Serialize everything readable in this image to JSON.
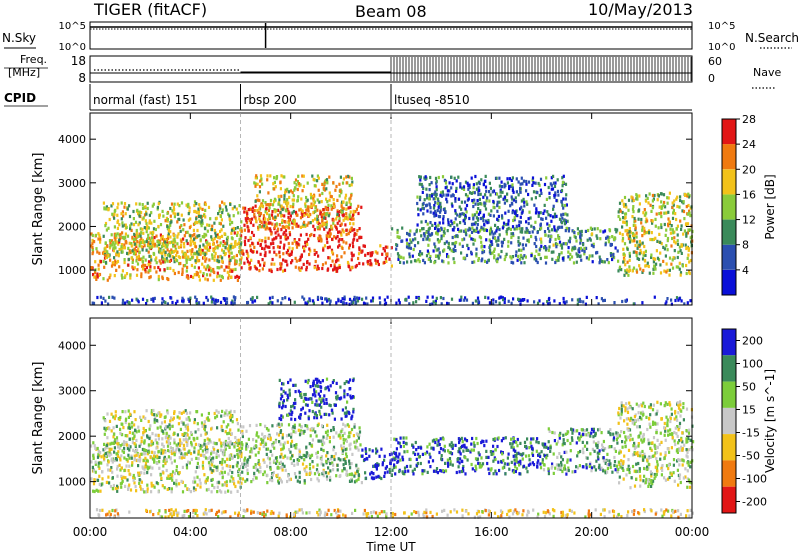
{
  "header": {
    "radar_title": "TIGER (fitACF)",
    "beam": "Beam 08",
    "date": "10/May/2013"
  },
  "status_panel": {
    "nsky_label": "N.Sky",
    "nsearch_label": "N.Search",
    "noise_ticks_left": [
      "10^5",
      "10^0"
    ],
    "noise_ticks_right": [
      "10^5",
      "10^0"
    ],
    "freq_label": "Freq.",
    "freq_unit": "[MHz]",
    "freq_ticks": [
      "18",
      "8"
    ],
    "nave_label": "Nave",
    "nave_ticks": [
      "60",
      "0"
    ],
    "cpid_label": "CPID",
    "cpid_segments": [
      {
        "label": "normal (fast) 151",
        "start_hour": 0,
        "end_hour": 6
      },
      {
        "label": "rbsp 200",
        "start_hour": 6,
        "end_hour": 12
      },
      {
        "label": "ltuseq -8510",
        "start_hour": 12,
        "end_hour": 24
      }
    ]
  },
  "chart_data": [
    {
      "type": "heatmap",
      "parameter": "Power",
      "xlabel": "Time UT",
      "ylabel": "Slant Range [km]",
      "xlim": [
        0,
        24
      ],
      "ylim": [
        200,
        4600
      ],
      "x_ticks": [
        "00:00",
        "04:00",
        "08:00",
        "12:00",
        "16:00",
        "20:00",
        "00:00"
      ],
      "x_tick_hours": [
        0,
        4,
        8,
        12,
        16,
        20,
        24
      ],
      "y_ticks": [
        1000,
        2000,
        3000,
        4000
      ],
      "colorbar": {
        "label": "Power [dB]",
        "ticks": [
          "4",
          "8",
          "12",
          "16",
          "20",
          "24",
          "28"
        ],
        "colors": [
          "#0a10d8",
          "#2b4fb0",
          "#3a8a5a",
          "#8acb3a",
          "#f2c21a",
          "#f07a10",
          "#e21616"
        ]
      },
      "echo_regions": [
        {
          "t0": 0.0,
          "t1": 6.0,
          "r0": 800,
          "r1": 1900,
          "level": 0.7
        },
        {
          "t0": 0.5,
          "t1": 6.0,
          "r0": 1200,
          "r1": 2600,
          "level": 0.55
        },
        {
          "t0": 6.0,
          "t1": 10.8,
          "r0": 1000,
          "r1": 2500,
          "level": 0.9
        },
        {
          "t0": 6.5,
          "t1": 10.5,
          "r0": 2000,
          "r1": 3200,
          "level": 0.6
        },
        {
          "t0": 10.8,
          "t1": 12.0,
          "r0": 1100,
          "r1": 1600,
          "level": 0.9
        },
        {
          "t0": 12.0,
          "t1": 21.0,
          "r0": 1200,
          "r1": 2000,
          "level": 0.35
        },
        {
          "t0": 13.0,
          "t1": 19.0,
          "r0": 1900,
          "r1": 3200,
          "level": 0.25
        },
        {
          "t0": 21.0,
          "t1": 24.0,
          "r0": 900,
          "r1": 2800,
          "level": 0.55
        },
        {
          "t0": 0.0,
          "t1": 24.0,
          "r0": 250,
          "r1": 420,
          "level": 0.15
        }
      ]
    },
    {
      "type": "heatmap",
      "parameter": "Velocity",
      "xlabel": "Time UT",
      "ylabel": "Slant Range [km]",
      "xlim": [
        0,
        24
      ],
      "ylim": [
        200,
        4600
      ],
      "x_ticks": [
        "00:00",
        "04:00",
        "08:00",
        "12:00",
        "16:00",
        "20:00",
        "00:00"
      ],
      "x_tick_hours": [
        0,
        4,
        8,
        12,
        16,
        20,
        24
      ],
      "y_ticks": [
        1000,
        2000,
        3000,
        4000
      ],
      "colorbar": {
        "label": "Velocity [m s^-1]",
        "ticks": [
          "200",
          "100",
          "50",
          "15",
          "-15",
          "-50",
          "-100",
          "-200"
        ],
        "colors": [
          "#1a1ad8",
          "#3a8a5a",
          "#7ccd3a",
          "#c8c8c8",
          "#f2c21a",
          "#f07a10",
          "#e21616"
        ]
      },
      "echo_regions": [
        {
          "t0": 0.0,
          "t1": 6.0,
          "r0": 800,
          "r1": 1900,
          "level": 0.45
        },
        {
          "t0": 0.5,
          "t1": 6.0,
          "r0": 1500,
          "r1": 2600,
          "level": 0.45
        },
        {
          "t0": 6.0,
          "t1": 10.8,
          "r0": 1000,
          "r1": 2300,
          "level": 0.4
        },
        {
          "t0": 7.5,
          "t1": 10.5,
          "r0": 2400,
          "r1": 3300,
          "level": 0.1
        },
        {
          "t0": 10.8,
          "t1": 12.0,
          "r0": 1100,
          "r1": 1800,
          "level": 0.05
        },
        {
          "t0": 12.0,
          "t1": 18.0,
          "r0": 1200,
          "r1": 2000,
          "level": 0.15
        },
        {
          "t0": 18.0,
          "t1": 21.0,
          "r0": 1200,
          "r1": 2200,
          "level": 0.3
        },
        {
          "t0": 21.0,
          "t1": 24.0,
          "r0": 900,
          "r1": 2800,
          "level": 0.45
        },
        {
          "t0": 0.0,
          "t1": 24.0,
          "r0": 250,
          "r1": 420,
          "level": 0.6
        }
      ]
    }
  ]
}
